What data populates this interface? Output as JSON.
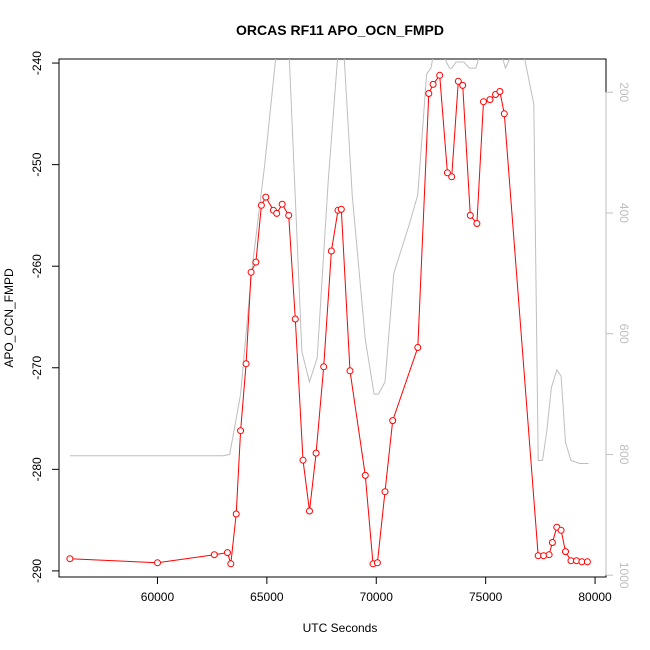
{
  "chart_data": {
    "type": "line",
    "title": "ORCAS RF11 APO_OCN_FMPD",
    "xlabel": "UTC Seconds",
    "ylabel": "APO_OCN_FMPD",
    "xlim": [
      55500,
      80500
    ],
    "ylim": [
      -290.6,
      -239.6
    ],
    "y2lim": [
      1003,
      145
    ],
    "x_ticks": [
      60000,
      65000,
      70000,
      75000,
      80000
    ],
    "y_ticks": [
      -240,
      -250,
      -260,
      -270,
      -280,
      -290
    ],
    "y2_ticks": [
      200,
      400,
      600,
      800,
      1000
    ],
    "x_tick_labels": [
      "60000",
      "65000",
      "70000",
      "75000",
      "80000"
    ],
    "y_tick_labels": [
      "-240",
      "-250",
      "-260",
      "-270",
      "-280",
      "-290"
    ],
    "y2_tick_labels": [
      "200",
      "400",
      "600",
      "800",
      "1000"
    ],
    "grid": false,
    "series": [
      {
        "color": "#ff0000",
        "style": "line+open-circle",
        "x": [
          56000,
          60000,
          62600,
          63200,
          63350,
          63600,
          63800,
          64050,
          64280,
          64500,
          64750,
          64950,
          65300,
          65450,
          65700,
          66000,
          66300,
          66650,
          66950,
          67250,
          67600,
          67950,
          68250,
          68400,
          68800,
          69500,
          69850,
          70050,
          70400,
          70750,
          71900,
          72400,
          72600,
          72900,
          73250,
          73450,
          73750,
          73950,
          74300,
          74600,
          74900,
          75200,
          75450,
          75650,
          75850,
          77400,
          77650,
          77900,
          78050,
          78250,
          78450,
          78650,
          78900,
          79150,
          79400,
          79650
        ],
        "y": [
          -288.8,
          -289.2,
          -288.4,
          -288.2,
          -289.3,
          -284.4,
          -276.2,
          -269.6,
          -260.6,
          -259.6,
          -254.0,
          -253.2,
          -254.5,
          -254.8,
          -253.9,
          -255.0,
          -265.2,
          -279.1,
          -284.1,
          -278.4,
          -269.9,
          -258.5,
          -254.5,
          -254.4,
          -270.3,
          -280.6,
          -289.3,
          -289.2,
          -282.2,
          -275.2,
          -268.0,
          -243.0,
          -242.1,
          -241.2,
          -250.8,
          -251.2,
          -241.8,
          -242.2,
          -255.0,
          -255.8,
          -243.8,
          -243.6,
          -243.1,
          -242.8,
          -245.0,
          -288.5,
          -288.5,
          -288.4,
          -287.2,
          -285.7,
          -286.0,
          -288.1,
          -289.0,
          -289.0,
          -289.1,
          -289.1
        ]
      },
      {
        "color": "#bebebe",
        "style": "line",
        "axis": "right",
        "x": [
          56000,
          60000,
          63000,
          63300,
          63800,
          64300,
          64900,
          65500,
          66000,
          66600,
          66950,
          67300,
          67800,
          68300,
          68500,
          68900,
          69500,
          69900,
          70100,
          70400,
          70800,
          71500,
          71900,
          72300,
          72500,
          72700,
          72900,
          73200,
          73350,
          73450,
          73650,
          74000,
          74250,
          74450,
          74550,
          74800,
          75300,
          75600,
          75900,
          76300,
          76700,
          77200,
          77400,
          77600,
          77800,
          78000,
          78250,
          78450,
          78650,
          78900,
          79300,
          79700
        ],
        "y": [
          802,
          802,
          802,
          800,
          700,
          500,
          320,
          110,
          120,
          630,
          680,
          640,
          350,
          110,
          120,
          370,
          610,
          700,
          700,
          680,
          500,
          420,
          370,
          170,
          160,
          120,
          120,
          150,
          160,
          160,
          150,
          150,
          160,
          160,
          160,
          130,
          120,
          120,
          160,
          130,
          130,
          220,
          810,
          810,
          760,
          690,
          660,
          670,
          780,
          810,
          815,
          815
        ]
      }
    ]
  }
}
